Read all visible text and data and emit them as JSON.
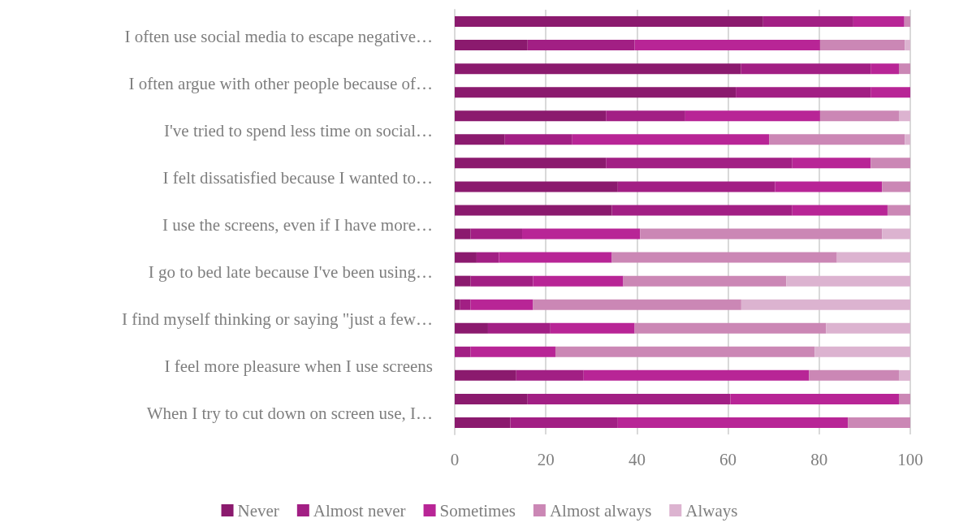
{
  "chart_data": {
    "type": "bar",
    "orientation": "horizontal",
    "stacked": true,
    "categories": [
      null,
      "I often use social media to escape negative…",
      null,
      "I often argue with other people because of…",
      null,
      "I've tried to spend less time on social…",
      null,
      "I felt dissatisfied because I wanted to…",
      null,
      "I use the screens, even if I have more…",
      null,
      "I go to bed late because I've been using…",
      null,
      "I find myself thinking or saying \"just a few…",
      null,
      "I feel more pleasure when I use screens",
      null,
      "When I try to cut down on screen use, I…"
    ],
    "series": [
      {
        "name": "Never",
        "color": "#8b1a6e",
        "values": [
          67.7,
          16,
          62.8,
          61.7,
          33.2,
          11,
          33.2,
          35.8,
          34.5,
          3.5,
          4.8,
          3.5,
          1.2,
          7.3,
          0,
          13.5,
          16,
          12.2
        ]
      },
      {
        "name": "Almost never",
        "color": "#a21f84",
        "values": [
          19.8,
          23.5,
          28.5,
          29.6,
          17.4,
          14.8,
          40.9,
          34.5,
          39.6,
          11.3,
          4.9,
          13.7,
          2.3,
          13.7,
          3.5,
          14.8,
          44.5,
          23.6
        ]
      },
      {
        "name": "Sometimes",
        "color": "#b82596",
        "values": [
          11.2,
          40.7,
          6.2,
          8.7,
          29.6,
          43.2,
          17.2,
          23.5,
          20.9,
          25.9,
          24.8,
          19.8,
          13.7,
          18.5,
          18.6,
          49.5,
          37,
          50.5
        ]
      },
      {
        "name": "Almost always",
        "color": "#cb87b5",
        "values": [
          1.3,
          18.6,
          2.5,
          0,
          17.3,
          29.8,
          8.7,
          6.2,
          5,
          53.1,
          49.4,
          35.8,
          45.7,
          42,
          56.9,
          19.7,
          2.5,
          13.7
        ]
      },
      {
        "name": "Always",
        "color": "#dcb3d0",
        "values": [
          0,
          1.2,
          0,
          0,
          2.5,
          1.2,
          0,
          0,
          0,
          6.2,
          16.1,
          27.2,
          37.1,
          18.5,
          21,
          2.5,
          0,
          0
        ]
      }
    ],
    "xlim": [
      0,
      100
    ],
    "xticks": [
      0,
      20,
      40,
      60,
      80,
      100
    ],
    "grid": "x",
    "legend": "bottom"
  }
}
